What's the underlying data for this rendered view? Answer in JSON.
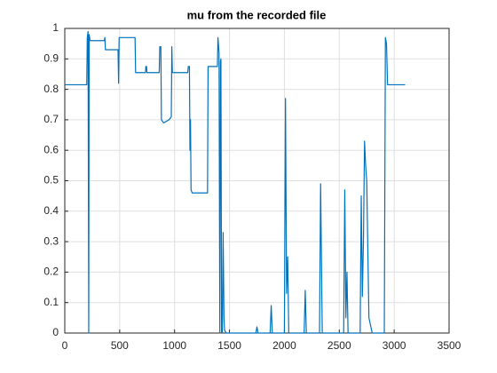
{
  "chart_data": {
    "type": "line",
    "title": "mu from the recorded file",
    "x": [
      0,
      200,
      205,
      212,
      218,
      222,
      230,
      360,
      365,
      370,
      485,
      490,
      495,
      500,
      640,
      645,
      735,
      738,
      745,
      748,
      860,
      865,
      875,
      880,
      900,
      950,
      970,
      975,
      980,
      985,
      1120,
      1125,
      1135,
      1140,
      1145,
      1150,
      1160,
      1300,
      1305,
      1390,
      1395,
      1405,
      1412,
      1418,
      1422,
      1428,
      1435,
      1442,
      1450,
      1455,
      1462,
      1470,
      1480,
      1600,
      1740,
      1750,
      1760,
      1870,
      1880,
      1890,
      2000,
      2010,
      2020,
      2030,
      2040,
      2180,
      2190,
      2200,
      2320,
      2330,
      2345,
      2540,
      2550,
      2560,
      2570,
      2580,
      2690,
      2700,
      2710,
      2720,
      2730,
      2740,
      2750,
      2770,
      2800,
      2910,
      2920,
      2930,
      2940,
      3100
    ],
    "series": [
      {
        "name": "mu",
        "color": "#0072bd",
        "values": [
          0.815,
          0.815,
          0.97,
          0.99,
          0,
          0.98,
          0.96,
          0.96,
          0.97,
          0.93,
          0.93,
          0.82,
          0.97,
          0.97,
          0.97,
          0.855,
          0.855,
          0.875,
          0.875,
          0.855,
          0.855,
          0.94,
          0.94,
          0.7,
          0.69,
          0.7,
          0.71,
          0.94,
          0.855,
          0.855,
          0.855,
          0.875,
          0.875,
          0.6,
          0.7,
          0.47,
          0.46,
          0.46,
          0.875,
          0.875,
          0.97,
          0.92,
          0,
          0.89,
          0.9,
          0,
          0.005,
          0.33,
          0.05,
          0.01,
          0.005,
          0,
          0,
          0,
          0,
          0.02,
          0,
          0,
          0.09,
          0,
          0,
          0.77,
          0.13,
          0.25,
          0,
          0,
          0.14,
          0,
          0,
          0.49,
          0,
          0,
          0.47,
          0.05,
          0.2,
          0,
          0,
          0.45,
          0.12,
          0.3,
          0.63,
          0.55,
          0.5,
          0.05,
          0,
          0,
          0.97,
          0.95,
          0.815,
          0.815
        ]
      }
    ],
    "xlim": [
      0,
      3500
    ],
    "xticks": [
      0,
      500,
      1000,
      1500,
      2000,
      2500,
      3000,
      3500
    ],
    "ylim": [
      0,
      1
    ],
    "yticks": [
      0,
      0.1,
      0.2,
      0.3,
      0.4,
      0.5,
      0.6,
      0.7,
      0.8,
      0.9,
      1
    ],
    "grid": true
  }
}
